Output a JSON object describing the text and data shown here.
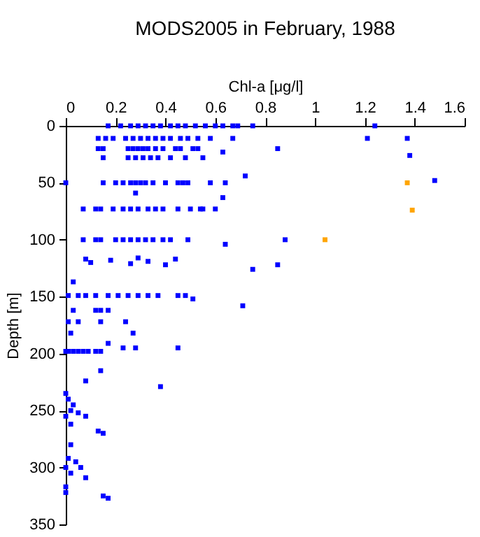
{
  "chart_data": {
    "type": "scatter",
    "title": "MODS2005 in February, 1988",
    "xlabel": "Chl-a [μg/l]",
    "ylabel": "Depth [m]",
    "xlim": [
      0,
      1.6
    ],
    "xticks": [
      0,
      0.2,
      0.4,
      0.6,
      0.8,
      1,
      1.2,
      1.4,
      1.6
    ],
    "ylim": [
      350,
      0
    ],
    "yticks": [
      0,
      50,
      100,
      150,
      200,
      250,
      300,
      350
    ],
    "grid": false,
    "legend": false,
    "marker": "square",
    "series": [
      {
        "color": "#0000ff",
        "x": [
          0.17,
          0.22,
          0.26,
          0.29,
          0.32,
          0.35,
          0.38,
          0.42,
          0.45,
          0.48,
          0.52,
          0.56,
          0.6,
          0.63,
          0.67,
          0.69,
          0.75,
          1.24,
          0.13,
          0.16,
          0.19,
          0.24,
          0.27,
          0.3,
          0.33,
          0.36,
          0.39,
          0.42,
          0.46,
          0.49,
          0.53,
          0.58,
          0.67,
          1.21,
          1.37,
          0.13,
          0.15,
          0.25,
          0.27,
          0.29,
          0.31,
          0.33,
          0.36,
          0.39,
          0.44,
          0.46,
          0.51,
          0.53,
          0.85,
          0.63,
          1.38,
          0.15,
          0.25,
          0.28,
          0.31,
          0.34,
          0.37,
          0.42,
          0.48,
          0.55,
          0.72,
          0.0,
          0.15,
          0.2,
          0.23,
          0.26,
          0.28,
          0.3,
          0.32,
          0.35,
          0.4,
          0.45,
          0.47,
          0.49,
          0.58,
          0.64,
          1.48,
          0.63,
          0.28,
          0.07,
          0.12,
          0.14,
          0.19,
          0.23,
          0.26,
          0.29,
          0.33,
          0.36,
          0.39,
          0.45,
          0.5,
          0.54,
          0.55,
          0.6,
          0.07,
          0.12,
          0.14,
          0.2,
          0.23,
          0.26,
          0.29,
          0.32,
          0.35,
          0.39,
          0.42,
          0.49,
          0.88,
          0.64,
          0.08,
          0.1,
          0.18,
          0.26,
          0.29,
          0.33,
          0.4,
          0.44,
          0.85,
          0.75,
          0.03,
          0.01,
          0.05,
          0.08,
          0.12,
          0.17,
          0.21,
          0.25,
          0.29,
          0.33,
          0.37,
          0.45,
          0.48,
          0.51,
          0.71,
          0.03,
          0.12,
          0.14,
          0.17,
          0.01,
          0.05,
          0.14,
          0.24,
          0.02,
          0.27,
          0.17,
          0.23,
          0.28,
          0.45,
          0.0,
          0.01,
          0.03,
          0.05,
          0.07,
          0.09,
          0.12,
          0.14,
          0.14,
          0.08,
          0.38,
          0.0,
          0.01,
          0.03,
          0.02,
          0.05,
          0.0,
          0.08,
          0.02,
          0.13,
          0.15,
          0.02,
          0.01,
          0.04,
          0.0,
          0.06,
          0.02,
          0.08,
          0.0,
          0.0,
          0.17,
          0.15
        ],
        "values": [
          0,
          0,
          0,
          0,
          0,
          0,
          0,
          0,
          0,
          0,
          0,
          0,
          0,
          0,
          0,
          0,
          0,
          0,
          11,
          11,
          11,
          11,
          11,
          11,
          11,
          11,
          11,
          11,
          11,
          11,
          11,
          11,
          11,
          11,
          11,
          20,
          20,
          20,
          20,
          20,
          20,
          20,
          20,
          20,
          20,
          20,
          20,
          20,
          20,
          23,
          26,
          28,
          28,
          28,
          28,
          28,
          28,
          28,
          28,
          28,
          44,
          50,
          50,
          50,
          50,
          50,
          50,
          50,
          50,
          50,
          50,
          50,
          50,
          50,
          50,
          50,
          48,
          63,
          59,
          73,
          73,
          73,
          73,
          73,
          73,
          73,
          73,
          73,
          73,
          73,
          73,
          73,
          73,
          73,
          100,
          100,
          100,
          100,
          100,
          100,
          100,
          100,
          100,
          100,
          100,
          100,
          100,
          104,
          117,
          120,
          118,
          121,
          116,
          119,
          122,
          117,
          122,
          126,
          137,
          149,
          149,
          149,
          149,
          149,
          149,
          149,
          149,
          149,
          149,
          149,
          149,
          152,
          158,
          162,
          162,
          162,
          162,
          172,
          172,
          172,
          172,
          182,
          182,
          191,
          195,
          195,
          195,
          198,
          198,
          198,
          198,
          198,
          198,
          198,
          198,
          215,
          224,
          229,
          235,
          240,
          245,
          250,
          252,
          255,
          255,
          262,
          268,
          270,
          280,
          292,
          295,
          300,
          300,
          305,
          309,
          317,
          322,
          327,
          325
        ]
      },
      {
        "color": "#ffa500",
        "x": [
          1.37,
          1.39,
          1.04
        ],
        "values": [
          50,
          74,
          100
        ]
      }
    ]
  }
}
